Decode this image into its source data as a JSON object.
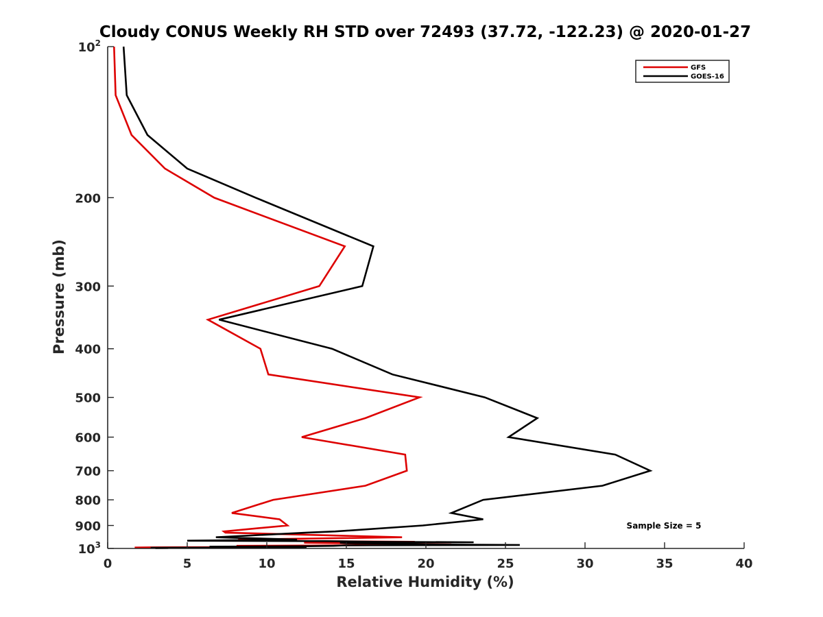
{
  "chart_data": {
    "type": "line",
    "title": "Cloudy CONUS Weekly RH STD over 72493 (37.72, -122.23) @ 2020-01-27",
    "xlabel": "Relative Humidity (%)",
    "ylabel": "Pressure (mb)",
    "xlim": [
      0,
      40
    ],
    "ylim": [
      100,
      1000
    ],
    "y_scale": "log",
    "y_reversed": true,
    "x_ticks": [
      "0",
      "5",
      "10",
      "15",
      "20",
      "25",
      "30",
      "35",
      "40"
    ],
    "y_ticks": [
      {
        "value": 100,
        "label": "10",
        "sup": "2"
      },
      {
        "value": 200,
        "label": "200"
      },
      {
        "value": 300,
        "label": "300"
      },
      {
        "value": 400,
        "label": "400"
      },
      {
        "value": 500,
        "label": "500"
      },
      {
        "value": 600,
        "label": "600"
      },
      {
        "value": 700,
        "label": "700"
      },
      {
        "value": 800,
        "label": "800"
      },
      {
        "value": 900,
        "label": "900"
      },
      {
        "value": 1000,
        "label": "10",
        "sup": "3"
      }
    ],
    "legend_position": "top-right",
    "grid": false,
    "annotation": "Sample Size = 5",
    "series": [
      {
        "name": "GFS",
        "color": "#dd0000",
        "points": [
          [
            0.4,
            100
          ],
          [
            0.5,
            125
          ],
          [
            1.5,
            150
          ],
          [
            3.6,
            175
          ],
          [
            6.7,
            200
          ],
          [
            14.9,
            250
          ],
          [
            13.3,
            300
          ],
          [
            6.3,
            350
          ],
          [
            9.6,
            400
          ],
          [
            10.1,
            450
          ],
          [
            19.6,
            500
          ],
          [
            16.2,
            550
          ],
          [
            12.2,
            600
          ],
          [
            18.7,
            650
          ],
          [
            18.8,
            700
          ],
          [
            16.2,
            750
          ],
          [
            10.4,
            800
          ],
          [
            7.8,
            850
          ],
          [
            10.8,
            875
          ],
          [
            11.3,
            900
          ],
          [
            7.3,
            925
          ],
          [
            7.4,
            930
          ],
          [
            18.5,
            950
          ],
          [
            8.2,
            960
          ],
          [
            11.3,
            965
          ],
          [
            12.7,
            967
          ],
          [
            19.3,
            970
          ],
          [
            12.4,
            972
          ],
          [
            12.4,
            974
          ],
          [
            14.6,
            976
          ],
          [
            15.6,
            978
          ],
          [
            15.8,
            980
          ],
          [
            21.6,
            982
          ],
          [
            17.9,
            984
          ],
          [
            15.1,
            986
          ],
          [
            8.1,
            988
          ],
          [
            8.3,
            990
          ],
          [
            10.5,
            992
          ],
          [
            10.9,
            993
          ],
          [
            9.6,
            994
          ],
          [
            2.7,
            995
          ],
          [
            1.7,
            996
          ],
          [
            3.1,
            997
          ]
        ]
      },
      {
        "name": "GOES-16",
        "color": "#000000",
        "points": [
          [
            1.0,
            100
          ],
          [
            1.2,
            125
          ],
          [
            2.5,
            150
          ],
          [
            5.0,
            175
          ],
          [
            9.3,
            200
          ],
          [
            16.7,
            250
          ],
          [
            16.0,
            300
          ],
          [
            7.0,
            350
          ],
          [
            14.1,
            400
          ],
          [
            17.9,
            450
          ],
          [
            23.7,
            500
          ],
          [
            27.0,
            550
          ],
          [
            25.2,
            600
          ],
          [
            31.9,
            650
          ],
          [
            34.1,
            700
          ],
          [
            31.1,
            750
          ],
          [
            23.6,
            800
          ],
          [
            21.6,
            850
          ],
          [
            23.6,
            875
          ],
          [
            19.8,
            900
          ],
          [
            14.3,
            925
          ],
          [
            12.5,
            930
          ],
          [
            6.8,
            950
          ],
          [
            11.9,
            960
          ],
          [
            5.0,
            965
          ],
          [
            13.6,
            967
          ],
          [
            16.7,
            970
          ],
          [
            23.0,
            972
          ],
          [
            14.6,
            974
          ],
          [
            15.1,
            976
          ],
          [
            18.0,
            978
          ],
          [
            18.6,
            980
          ],
          [
            19.9,
            982
          ],
          [
            25.9,
            984
          ],
          [
            14.9,
            986
          ],
          [
            14.2,
            988
          ],
          [
            12.3,
            990
          ],
          [
            6.4,
            992
          ],
          [
            10.5,
            993
          ],
          [
            12.5,
            994
          ],
          [
            11.2,
            995
          ],
          [
            8.4,
            996
          ],
          [
            2.7,
            997
          ],
          [
            3.8,
            998
          ],
          [
            3.0,
            999
          ]
        ]
      }
    ]
  }
}
